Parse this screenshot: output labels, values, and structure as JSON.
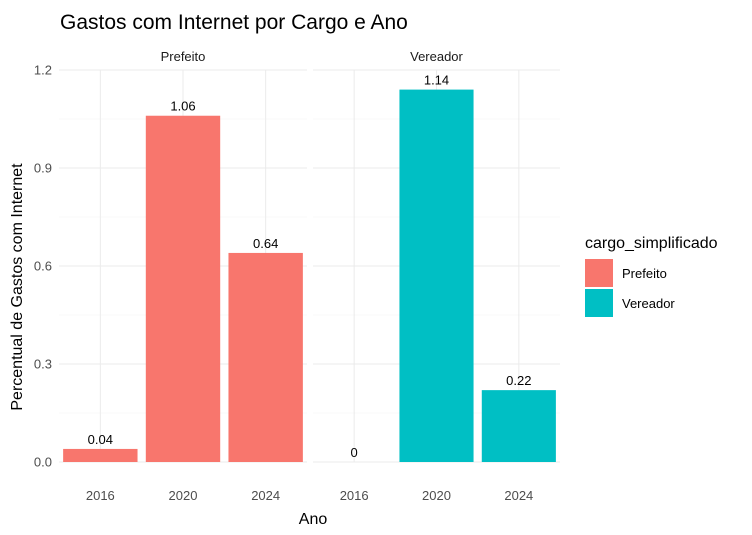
{
  "chart_data": {
    "type": "bar",
    "title": "Gastos com Internet por Cargo e Ano",
    "xlabel": "Ano",
    "ylabel": "Percentual de Gastos com Internet",
    "ylim": [
      0,
      1.2
    ],
    "y_ticks": [
      "0.0",
      "0.3",
      "0.6",
      "0.9",
      "1.2"
    ],
    "categories": [
      "2016",
      "2020",
      "2024"
    ],
    "grid": true,
    "facets": [
      {
        "name": "Prefeito",
        "color": "#F8766D",
        "values": [
          0.04,
          1.06,
          0.64
        ],
        "labels": [
          "0.04",
          "1.06",
          "0.64"
        ]
      },
      {
        "name": "Vereador",
        "color": "#00BFC4",
        "values": [
          0,
          1.14,
          0.22
        ],
        "labels": [
          "0",
          "1.14",
          "0.22"
        ]
      }
    ],
    "legend": {
      "title": "cargo_simplificado",
      "position": "right",
      "items": [
        {
          "label": "Prefeito",
          "color": "#F8766D"
        },
        {
          "label": "Vereador",
          "color": "#00BFC4"
        }
      ]
    }
  }
}
